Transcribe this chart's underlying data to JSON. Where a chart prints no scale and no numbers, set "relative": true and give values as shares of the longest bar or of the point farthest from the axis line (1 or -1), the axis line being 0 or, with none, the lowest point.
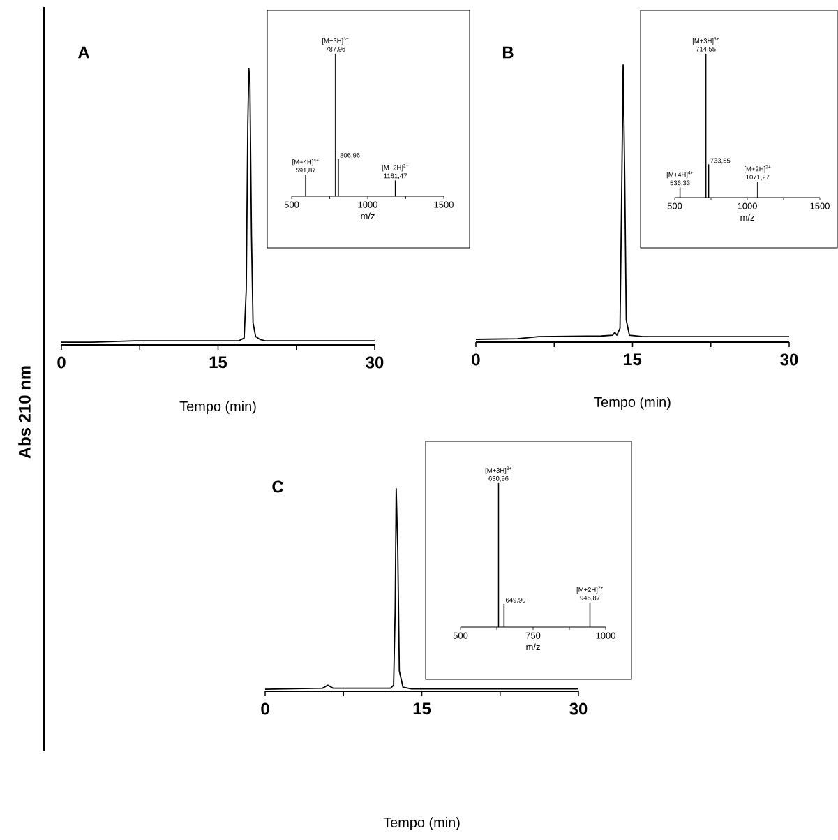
{
  "chart_data": [
    {
      "type": "line",
      "title": "A",
      "ylabel": "Abs 210 nm",
      "xlabel": "Tempo (min)",
      "relative": true,
      "color": "#000000",
      "xlim": [
        0,
        30
      ],
      "xticks": [
        0,
        {
          "value": 7.5,
          "label": null
        },
        15,
        {
          "value": 22.5,
          "label": null
        },
        30
      ],
      "x": [
        0,
        3,
        7,
        17,
        17.5,
        17.7,
        17.85,
        17.95,
        18.05,
        18.2,
        18.35,
        18.6,
        19,
        19.5,
        30
      ],
      "values": [
        0.01,
        0.01,
        0.015,
        0.015,
        0.025,
        0.2,
        0.8,
        1,
        0.95,
        0.4,
        0.08,
        0.03,
        0.02,
        0.015,
        0.015
      ]
    },
    {
      "type": "bar",
      "xlabel": "m/z",
      "relative": true,
      "color": "#000000",
      "xlim": [
        500,
        1500
      ],
      "xticks": [
        500,
        {
          "value": 750,
          "label": null
        },
        1000,
        {
          "value": 1250,
          "label": null
        },
        1500
      ],
      "x": [
        591.87,
        787.96,
        806.96,
        1181.47
      ],
      "values": [
        0.15,
        1,
        0.26,
        0.11
      ],
      "annotations": [
        {
          "text": "[M+4H]$^{4+}$",
          "x": 591.87,
          "y": 0.15
        },
        {
          "text": "591,87",
          "x": 591.87,
          "y": 0.15
        },
        {
          "text": "[M+3H]$^{3+}$",
          "x": 787.96,
          "y": 1
        },
        {
          "text": "787,96",
          "x": 787.96,
          "y": 1
        },
        {
          "text": "806,96",
          "x": 806.96,
          "y": 0.26
        },
        {
          "text": "[M+2H]$^{2+}$",
          "x": 1181.47,
          "y": 0.11
        },
        {
          "text": "1181,47",
          "x": 1181.47,
          "y": 0.11
        }
      ]
    },
    {
      "type": "line",
      "title": "B",
      "xlabel": "Tempo (min)",
      "relative": true,
      "color": "#000000",
      "xlim": [
        0,
        30
      ],
      "xticks": [
        0,
        {
          "value": 7.5,
          "label": null
        },
        15,
        {
          "value": 22.5,
          "label": null
        },
        30
      ],
      "x": [
        0,
        4,
        6,
        12,
        13.1,
        13.3,
        13.5,
        13.8,
        13.95,
        14.1,
        14.25,
        14.4,
        14.7,
        16,
        30
      ],
      "values": [
        0.01,
        0.012,
        0.02,
        0.022,
        0.025,
        0.035,
        0.025,
        0.05,
        0.5,
        1,
        0.6,
        0.08,
        0.025,
        0.02,
        0.02
      ]
    },
    {
      "type": "bar",
      "xlabel": "m/z",
      "relative": true,
      "color": "#000000",
      "xlim": [
        500,
        1500
      ],
      "xticks": [
        500,
        {
          "value": 750,
          "label": null
        },
        1000,
        {
          "value": 1250,
          "label": null
        },
        1500
      ],
      "x": [
        536.33,
        714.55,
        733.55,
        1071.27
      ],
      "values": [
        0.07,
        1,
        0.23,
        0.11
      ],
      "annotations": [
        {
          "text": "[M+4H]$^{4+}$",
          "x": 536.33,
          "y": 0.07
        },
        {
          "text": "536,33",
          "x": 536.33,
          "y": 0.07
        },
        {
          "text": "[M+3H]$^{3+}$",
          "x": 714.55,
          "y": 1
        },
        {
          "text": "714,55",
          "x": 714.55,
          "y": 1
        },
        {
          "text": "733,55",
          "x": 733.55,
          "y": 0.23
        },
        {
          "text": "[M+2H]$^{2+}$",
          "x": 1071.27,
          "y": 0.11
        },
        {
          "text": "1071,27",
          "x": 1071.27,
          "y": 0.11
        }
      ]
    },
    {
      "type": "line",
      "title": "C",
      "xlabel": "Tempo (min)",
      "relative": true,
      "color": "#000000",
      "xlim": [
        0,
        30
      ],
      "xticks": [
        0,
        {
          "value": 7.5,
          "label": null
        },
        15,
        {
          "value": 22.5,
          "label": null
        },
        30
      ],
      "x": [
        0,
        5.5,
        6,
        6.5,
        12,
        12.3,
        12.45,
        12.55,
        12.7,
        12.85,
        13.2,
        14,
        30
      ],
      "values": [
        0.01,
        0.015,
        0.03,
        0.015,
        0.015,
        0.03,
        0.4,
        1,
        0.7,
        0.1,
        0.02,
        0.012,
        0.012
      ]
    },
    {
      "type": "bar",
      "xlabel": "m/z",
      "relative": true,
      "color": "#000000",
      "xlim": [
        500,
        1000
      ],
      "xticks": [
        500,
        {
          "value": 625,
          "label": null
        },
        750,
        {
          "value": 875,
          "label": null
        },
        1000
      ],
      "x": [
        630.96,
        649.9,
        945.87
      ],
      "values": [
        1,
        0.16,
        0.17
      ],
      "annotations": [
        {
          "text": "[M+3H]$^{3+}$",
          "x": 630.96,
          "y": 1
        },
        {
          "text": "630,96",
          "x": 630.96,
          "y": 1
        },
        {
          "text": "649,90",
          "x": 649.9,
          "y": 0.16
        },
        {
          "text": "[M+2H]$^{2+}$",
          "x": 945.87,
          "y": 0.17
        },
        {
          "text": "945,87",
          "x": 945.87,
          "y": 0.17
        }
      ]
    }
  ]
}
